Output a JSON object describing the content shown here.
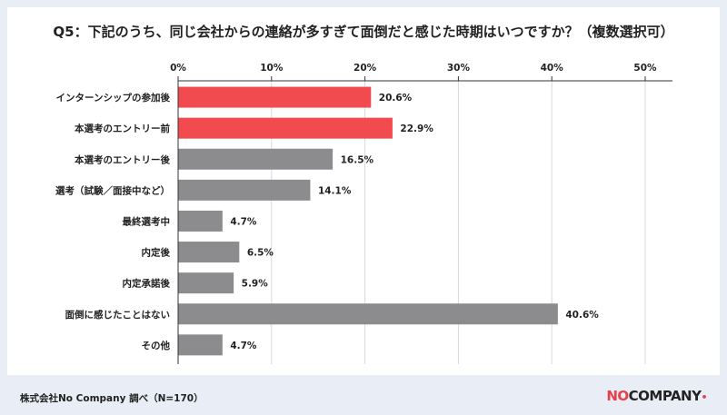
{
  "title": "Q5：下記のうち、同じ会社からの連絡が多すぎて面倒だと感じた時期はいつですか？（複数選択可）",
  "source": "株式会社No Company 調べ（N=170）",
  "logo": {
    "part1": "NO",
    "part2": "COMPANY",
    "mark": "•"
  },
  "colors": {
    "highlight": "#f24b4f",
    "normal": "#8c8b8d",
    "background": "#e9edf5"
  },
  "chart_data": {
    "type": "bar",
    "orientation": "horizontal",
    "categories": [
      "インターンシップの参加後",
      "本選考のエントリー前",
      "本選考のエントリー後",
      "選考（試験／面接中など）",
      "最終選考中",
      "内定後",
      "内定承諾後",
      "面倒に感じたことはない",
      "その他"
    ],
    "values": [
      20.6,
      22.9,
      16.5,
      14.1,
      4.7,
      6.5,
      5.9,
      40.6,
      4.7
    ],
    "value_labels": [
      "20.6%",
      "22.9%",
      "16.5%",
      "14.1%",
      "4.7%",
      "6.5%",
      "5.9%",
      "40.6%",
      "4.7%"
    ],
    "highlighted": [
      true,
      true,
      false,
      false,
      false,
      false,
      false,
      false,
      false
    ],
    "xlim": [
      0,
      50
    ],
    "xticks": [
      0,
      10,
      20,
      30,
      40,
      50
    ],
    "xtick_labels": [
      "0%",
      "10%",
      "20%",
      "30%",
      "40%",
      "50%"
    ],
    "axis_position": "top",
    "grid": true
  }
}
